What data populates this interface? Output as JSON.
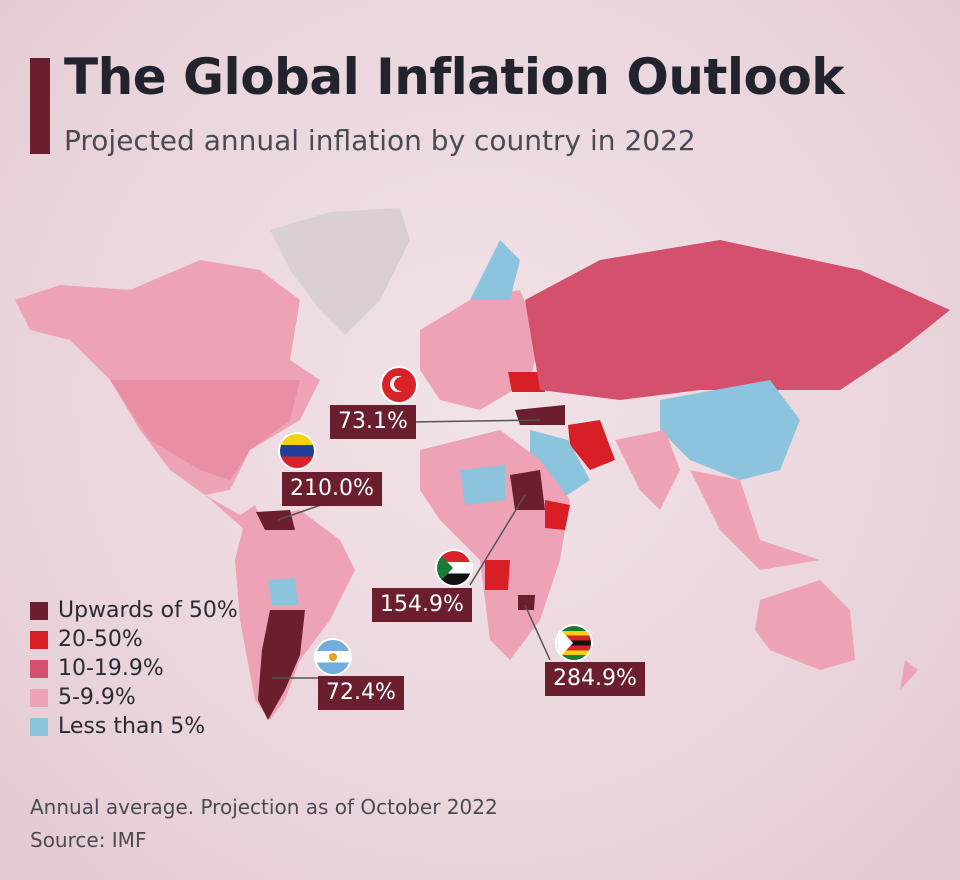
{
  "header": {
    "title": "The Global Inflation Outlook",
    "subtitle": "Projected annual inflation by country in 2022"
  },
  "legend": [
    {
      "label": "Upwards of 50%",
      "color": "#6b1f2e"
    },
    {
      "label": "20-50%",
      "color": "#d81f26"
    },
    {
      "label": "10-19.9%",
      "color": "#d4506d"
    },
    {
      "label": "5-9.9%",
      "color": "#eda3b5"
    },
    {
      "label": "Less than 5%",
      "color": "#8cc3dd"
    }
  ],
  "callouts": [
    {
      "country": "Turkey",
      "value": "73.1%"
    },
    {
      "country": "Venezuela",
      "value": "210.0%"
    },
    {
      "country": "Sudan",
      "value": "154.9%"
    },
    {
      "country": "Argentina",
      "value": "72.4%"
    },
    {
      "country": "Zimbabwe",
      "value": "284.9%"
    }
  ],
  "footer": {
    "note": "Annual average. Projection as of October 2022",
    "source": "Source: IMF"
  }
}
